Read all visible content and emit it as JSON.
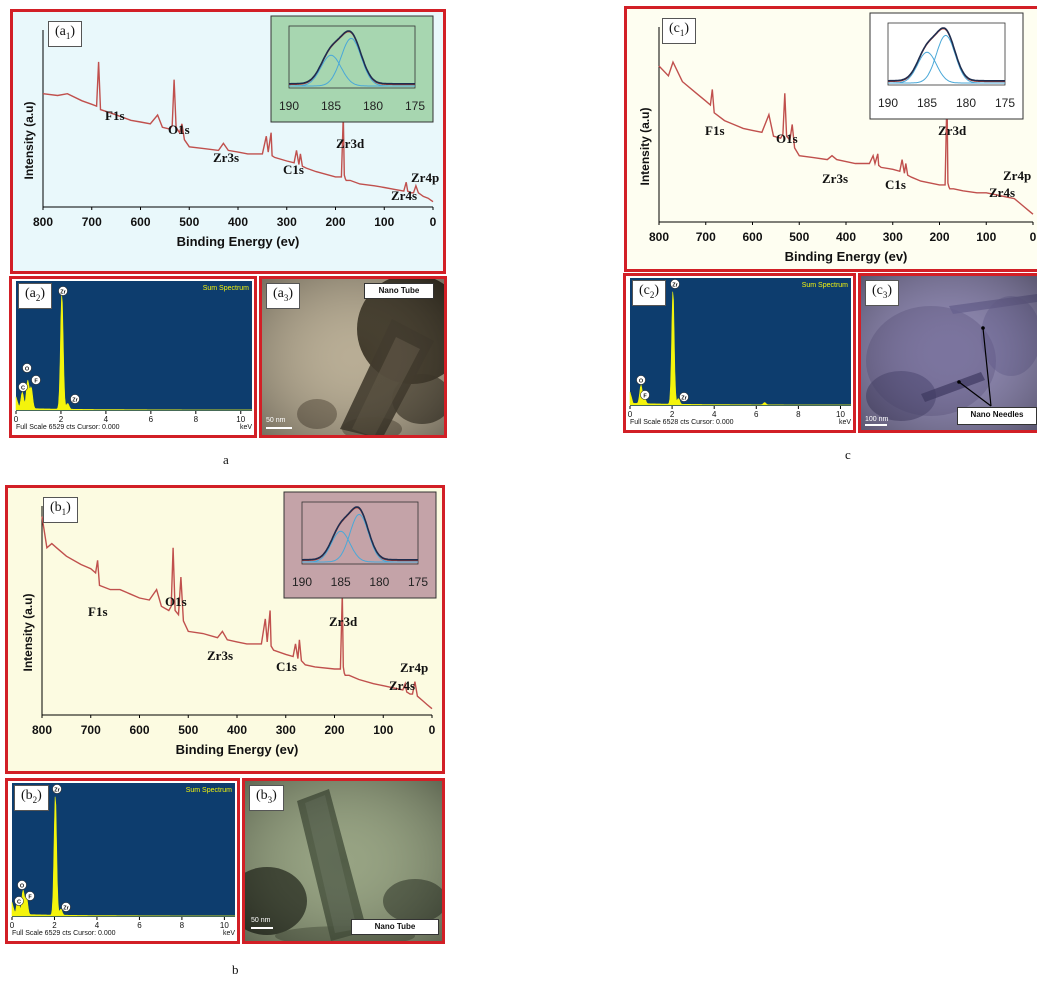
{
  "figure_labels": {
    "a": "a",
    "b": "b",
    "c": "c"
  },
  "colors": {
    "frame": "#d21f26",
    "spectrum_line": "#c0504d",
    "eds_bg": "#0d3d6e",
    "eds_fill": "#f4f40c",
    "fit_dark": "#1f2d4e",
    "fit_blue": "#4aa8d8",
    "fit_red": "#c0392b"
  },
  "panels": {
    "a": {
      "xps_tag": {
        "main": "(a",
        "sub": "1",
        "close": ")"
      },
      "eds_tag": {
        "main": "(a",
        "sub": "2",
        "close": ")"
      },
      "tem_tag": {
        "main": "(a",
        "sub": "3",
        "close": ")"
      },
      "tem_label": "Nano Tube",
      "tem_scale": "50 nm",
      "xps_bg": "#e9f8fb",
      "inset_bg": "#a7d6b0",
      "tem_bg": "#b8ad95"
    },
    "b": {
      "xps_tag": {
        "main": "(b",
        "sub": "1",
        "close": ")"
      },
      "eds_tag": {
        "main": "(b",
        "sub": "2",
        "close": ")"
      },
      "tem_tag": {
        "main": "(b",
        "sub": "3",
        "close": ")"
      },
      "tem_label": "Nano Tube",
      "tem_scale": "50 nm",
      "xps_bg": "#fcfbe1",
      "inset_bg": "#c4a3a8",
      "tem_bg": "#97a383"
    },
    "c": {
      "xps_tag": {
        "main": "(c",
        "sub": "1",
        "close": ")"
      },
      "eds_tag": {
        "main": "(c",
        "sub": "2",
        "close": ")"
      },
      "tem_tag": {
        "main": "(c",
        "sub": "3",
        "close": ")"
      },
      "tem_label": "Nano Needles",
      "tem_scale": "100 nm",
      "xps_bg": "#fefef1",
      "inset_bg": "#ffffff",
      "tem_bg": "#8e88b0"
    }
  },
  "chart_data": [
    {
      "id": "a1",
      "type": "line",
      "xlabel": "Binding Energy (ev)",
      "ylabel": "Intensity (a.u)",
      "xlim": [
        800,
        0
      ],
      "x_reversed": true,
      "xticks": [
        "800",
        "700",
        "600",
        "500",
        "400",
        "300",
        "200",
        "100",
        "0"
      ],
      "peak_labels": [
        "F1s",
        "O1s",
        "Zr3s",
        "C1s",
        "Zr3d",
        "Zr4s",
        "Zr4p"
      ],
      "series": [
        {
          "x": [
            800,
            770,
            750,
            720,
            700,
            690,
            686,
            682,
            660,
            640,
            620,
            600,
            580,
            565,
            555,
            540,
            535,
            531,
            527,
            520,
            515,
            510,
            500,
            470,
            440,
            430,
            420,
            400,
            380,
            350,
            342,
            338,
            332,
            330,
            325,
            300,
            285,
            280,
            275,
            272,
            268,
            260,
            240,
            200,
            188,
            184,
            182,
            180,
            178,
            170,
            150,
            120,
            100,
            80,
            60,
            55,
            52,
            45,
            40,
            35,
            30,
            20,
            10,
            0
          ],
          "y": [
            0.64,
            0.63,
            0.64,
            0.6,
            0.58,
            0.57,
            0.82,
            0.55,
            0.53,
            0.51,
            0.49,
            0.48,
            0.47,
            0.52,
            0.45,
            0.44,
            0.46,
            0.72,
            0.45,
            0.42,
            0.47,
            0.38,
            0.34,
            0.33,
            0.32,
            0.36,
            0.32,
            0.31,
            0.3,
            0.3,
            0.4,
            0.31,
            0.42,
            0.29,
            0.28,
            0.26,
            0.25,
            0.32,
            0.24,
            0.3,
            0.23,
            0.22,
            0.2,
            0.17,
            0.17,
            0.52,
            0.18,
            0.16,
            0.15,
            0.15,
            0.13,
            0.12,
            0.11,
            0.1,
            0.09,
            0.14,
            0.09,
            0.08,
            0.08,
            0.12,
            0.08,
            0.06,
            0.05,
            0.03
          ]
        }
      ],
      "inset": {
        "type": "line",
        "xlim": [
          190,
          175
        ],
        "xticks": [
          "190",
          "185",
          "180",
          "175"
        ],
        "components": [
          {
            "color": "blue",
            "center": 185,
            "height": 0.55,
            "width": 1.2
          },
          {
            "color": "blue",
            "center": 182.6,
            "height": 0.85,
            "width": 1.2
          }
        ]
      }
    },
    {
      "id": "b1",
      "type": "line",
      "xlabel": "Binding Energy (ev)",
      "ylabel": "Intensity (a.u)",
      "xlim": [
        800,
        0
      ],
      "x_reversed": true,
      "xticks": [
        "800",
        "700",
        "600",
        "500",
        "400",
        "300",
        "200",
        "100",
        "0"
      ],
      "peak_labels": [
        "F1s",
        "O1s",
        "Zr3s",
        "C1s",
        "Zr3d",
        "Zr4s",
        "Zr4p"
      ],
      "series": [
        {
          "x": [
            800,
            790,
            780,
            770,
            750,
            720,
            700,
            690,
            686,
            682,
            660,
            640,
            620,
            600,
            580,
            565,
            555,
            540,
            535,
            531,
            527,
            520,
            515,
            510,
            500,
            470,
            440,
            430,
            420,
            400,
            380,
            350,
            342,
            338,
            332,
            330,
            325,
            300,
            285,
            280,
            275,
            272,
            268,
            260,
            240,
            200,
            188,
            184,
            182,
            180,
            178,
            170,
            150,
            120,
            100,
            80,
            60,
            55,
            52,
            45,
            40,
            35,
            30,
            20,
            10,
            0
          ],
          "y": [
            0.95,
            0.8,
            0.82,
            0.8,
            0.76,
            0.72,
            0.7,
            0.68,
            0.74,
            0.62,
            0.6,
            0.6,
            0.58,
            0.56,
            0.55,
            0.6,
            0.52,
            0.5,
            0.52,
            0.8,
            0.5,
            0.48,
            0.66,
            0.45,
            0.4,
            0.39,
            0.37,
            0.4,
            0.36,
            0.35,
            0.34,
            0.34,
            0.46,
            0.35,
            0.5,
            0.33,
            0.31,
            0.29,
            0.28,
            0.34,
            0.27,
            0.36,
            0.26,
            0.24,
            0.23,
            0.22,
            0.22,
            0.58,
            0.23,
            0.2,
            0.19,
            0.19,
            0.17,
            0.15,
            0.14,
            0.13,
            0.12,
            0.15,
            0.11,
            0.1,
            0.1,
            0.16,
            0.09,
            0.07,
            0.05,
            0.03
          ]
        }
      ],
      "inset": {
        "type": "line",
        "xlim": [
          190,
          175
        ],
        "xticks": [
          "190",
          "185",
          "180",
          "175"
        ],
        "components": [
          {
            "color": "blue",
            "center": 185,
            "height": 0.55,
            "width": 1.2
          },
          {
            "color": "blue",
            "center": 182.6,
            "height": 0.85,
            "width": 1.2
          }
        ]
      }
    },
    {
      "id": "c1",
      "type": "line",
      "xlabel": "Binding Energy (ev)",
      "ylabel": "Intensity (a.u)",
      "xlim": [
        800,
        0
      ],
      "x_reversed": true,
      "xticks": [
        "800",
        "700",
        "600",
        "500",
        "400",
        "300",
        "200",
        "100",
        "0"
      ],
      "peak_labels": [
        "F1s",
        "O1s",
        "Zr3s",
        "C1s",
        "Zr3d",
        "Zr4s",
        "Zr4p"
      ],
      "series": [
        {
          "x": [
            800,
            780,
            770,
            750,
            720,
            700,
            690,
            686,
            682,
            660,
            640,
            620,
            600,
            580,
            565,
            555,
            540,
            535,
            531,
            527,
            520,
            515,
            510,
            500,
            470,
            440,
            430,
            420,
            400,
            380,
            350,
            342,
            338,
            332,
            330,
            325,
            300,
            285,
            280,
            275,
            272,
            268,
            260,
            240,
            200,
            188,
            184,
            182,
            180,
            178,
            170,
            150,
            120,
            100,
            80,
            60,
            40,
            30,
            20,
            10,
            0
          ],
          "y": [
            0.8,
            0.75,
            0.82,
            0.72,
            0.66,
            0.62,
            0.6,
            0.68,
            0.56,
            0.52,
            0.5,
            0.48,
            0.47,
            0.46,
            0.55,
            0.44,
            0.43,
            0.45,
            0.66,
            0.44,
            0.42,
            0.5,
            0.38,
            0.34,
            0.33,
            0.32,
            0.34,
            0.32,
            0.31,
            0.3,
            0.3,
            0.34,
            0.3,
            0.35,
            0.29,
            0.28,
            0.27,
            0.26,
            0.32,
            0.25,
            0.3,
            0.24,
            0.23,
            0.21,
            0.19,
            0.19,
            0.66,
            0.2,
            0.18,
            0.17,
            0.17,
            0.16,
            0.15,
            0.15,
            0.14,
            0.13,
            0.12,
            0.1,
            0.08,
            0.06,
            0.04
          ]
        }
      ],
      "inset": {
        "type": "line",
        "xlim": [
          190,
          175
        ],
        "xticks": [
          "190",
          "185",
          "180",
          "175"
        ],
        "components": [
          {
            "color": "blue",
            "center": 185,
            "height": 0.55,
            "width": 1.2
          },
          {
            "color": "blue",
            "center": 182.6,
            "height": 0.85,
            "width": 1.2
          }
        ]
      }
    },
    {
      "id": "a2",
      "type": "bar",
      "title": "Sum Spectrum",
      "footer": "Full Scale 6529 cts Cursor: 0.000",
      "unit": "keV",
      "xlim": [
        0,
        10.5
      ],
      "xticks": [
        "0",
        "2",
        "4",
        "6",
        "8",
        "10"
      ],
      "element_labels": [
        "Zr",
        "O",
        "C",
        "F",
        "Zr"
      ],
      "peaks": [
        {
          "x": 0.28,
          "y": 0.14
        },
        {
          "x": 0.52,
          "y": 0.24
        },
        {
          "x": 0.68,
          "y": 0.18
        },
        {
          "x": 2.04,
          "y": 1.0
        },
        {
          "x": 2.3,
          "y": 0.05
        }
      ]
    },
    {
      "id": "b2",
      "type": "bar",
      "title": "Sum Spectrum",
      "footer": "Full Scale 6529 cts Cursor: 0.000",
      "unit": "keV",
      "xlim": [
        0,
        10.5
      ],
      "xticks": [
        "0",
        "2",
        "4",
        "6",
        "8",
        "10"
      ],
      "element_labels": [
        "Zr",
        "O",
        "C",
        "F",
        "Zr"
      ],
      "peaks": [
        {
          "x": 0.28,
          "y": 0.14
        },
        {
          "x": 0.52,
          "y": 0.2
        },
        {
          "x": 0.68,
          "y": 0.15
        },
        {
          "x": 2.04,
          "y": 1.0
        },
        {
          "x": 2.3,
          "y": 0.05
        }
      ]
    },
    {
      "id": "c2",
      "type": "bar",
      "title": "Sum Spectrum",
      "footer": "Full Scale 6528 cts Cursor: 0.000",
      "unit": "keV",
      "xlim": [
        0,
        10.5
      ],
      "xticks": [
        "0",
        "2",
        "4",
        "6",
        "8",
        "10"
      ],
      "element_labels": [
        "Zr",
        "O",
        "F",
        "Zr"
      ],
      "peaks": [
        {
          "x": 0.52,
          "y": 0.16
        },
        {
          "x": 0.68,
          "y": 0.06
        },
        {
          "x": 2.04,
          "y": 1.0
        },
        {
          "x": 2.3,
          "y": 0.05
        },
        {
          "x": 6.4,
          "y": 0.02
        }
      ]
    }
  ]
}
